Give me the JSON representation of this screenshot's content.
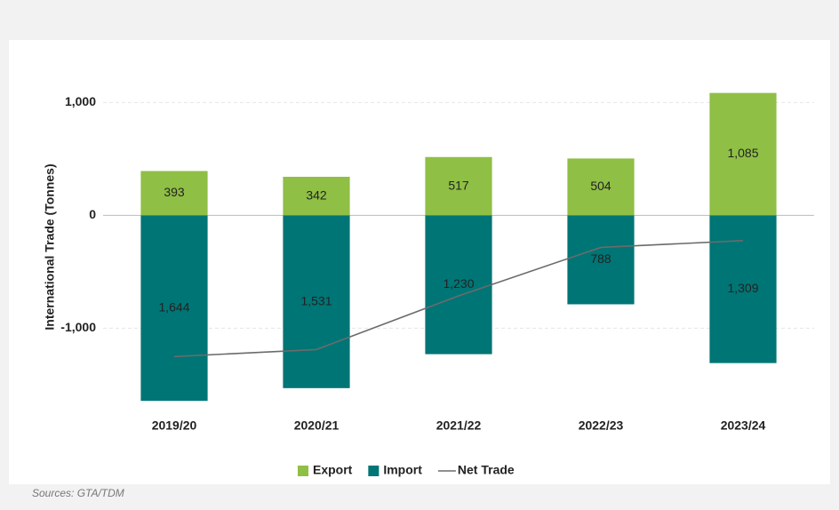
{
  "chart_data": {
    "type": "bar",
    "y_label": "International Trade (Tonnes)",
    "source": "Sources: GTA/TDM",
    "categories": [
      "2019/20",
      "2020/21",
      "2021/22",
      "2022/23",
      "2023/24"
    ],
    "series": [
      {
        "name": "Export",
        "type": "bar",
        "color": "#8fbf45",
        "values": [
          393,
          342,
          517,
          504,
          1085
        ],
        "value_labels": [
          "393",
          "342",
          "517",
          "504",
          "1,085"
        ]
      },
      {
        "name": "Import",
        "type": "bar",
        "color": "#007575",
        "values": [
          -1644,
          -1531,
          -1230,
          -788,
          -1309
        ],
        "value_labels": [
          "1,644",
          "1,531",
          "1,230",
          "788",
          "1,309"
        ]
      },
      {
        "name": "Net Trade",
        "type": "line",
        "color": "#6b6b6b",
        "values": [
          -1251,
          -1189,
          -713,
          -284,
          -224
        ]
      }
    ],
    "ylim": [
      -1800,
      1200
    ],
    "yticks": [
      {
        "value": 1000,
        "label": "1,000"
      },
      0,
      {
        "value": -1000,
        "label": "-1,000"
      }
    ],
    "grid": true
  }
}
